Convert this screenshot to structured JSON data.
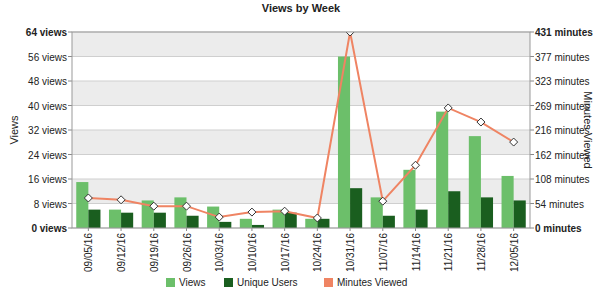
{
  "chart_data": {
    "type": "bar",
    "title": "Views by Week",
    "y_label": "Views",
    "y2_label": "Minutes Viewed",
    "categories": [
      "09/05/16",
      "09/12/16",
      "09/19/16",
      "09/26/16",
      "10/03/16",
      "10/10/16",
      "10/17/16",
      "10/24/16",
      "10/31/16",
      "11/07/16",
      "11/14/16",
      "11/21/16",
      "11/28/16",
      "12/05/16"
    ],
    "series": [
      {
        "name": "Views",
        "type": "bar",
        "color": "#6cbf6a",
        "values": [
          15,
          6,
          9,
          10,
          7,
          3,
          6,
          3,
          56,
          10,
          19,
          38,
          30,
          17
        ]
      },
      {
        "name": "Unique Users",
        "type": "bar",
        "color": "#1a5e1f",
        "values": [
          6,
          5,
          5,
          4,
          2,
          1,
          5,
          3,
          13,
          4,
          6,
          12,
          10,
          9
        ]
      },
      {
        "name": "Minutes Viewed",
        "type": "line",
        "axis": "y2",
        "color": "#ef8463",
        "marker": "diamond",
        "values": [
          66,
          62,
          48,
          48,
          24,
          35,
          37,
          22,
          431,
          59,
          138,
          264,
          233,
          189
        ]
      }
    ],
    "ylim": [
      0,
      64
    ],
    "yticks": [
      {
        "value": 0,
        "label": "0 views"
      },
      {
        "value": 8,
        "label": "8 views"
      },
      {
        "value": 16,
        "label": "16 views"
      },
      {
        "value": 24,
        "label": "24 views"
      },
      {
        "value": 32,
        "label": "32 views"
      },
      {
        "value": 40,
        "label": "40 views"
      },
      {
        "value": 48,
        "label": "48 views"
      },
      {
        "value": 56,
        "label": "56 views"
      },
      {
        "value": 64,
        "label": "64 views"
      }
    ],
    "y2lim": [
      0,
      431
    ],
    "y2ticks": [
      {
        "value": 0,
        "label": "0 minutes"
      },
      {
        "value": 53.875,
        "label": "54 minutes"
      },
      {
        "value": 107.75,
        "label": "108 minutes"
      },
      {
        "value": 161.625,
        "label": "162 minutes"
      },
      {
        "value": 215.5,
        "label": "216 minutes"
      },
      {
        "value": 269.375,
        "label": "269 minutes"
      },
      {
        "value": 323.25,
        "label": "323 minutes"
      },
      {
        "value": 377.125,
        "label": "377 minutes"
      },
      {
        "value": 431,
        "label": "431 minutes"
      }
    ],
    "grid": true,
    "legend": "bottom"
  }
}
